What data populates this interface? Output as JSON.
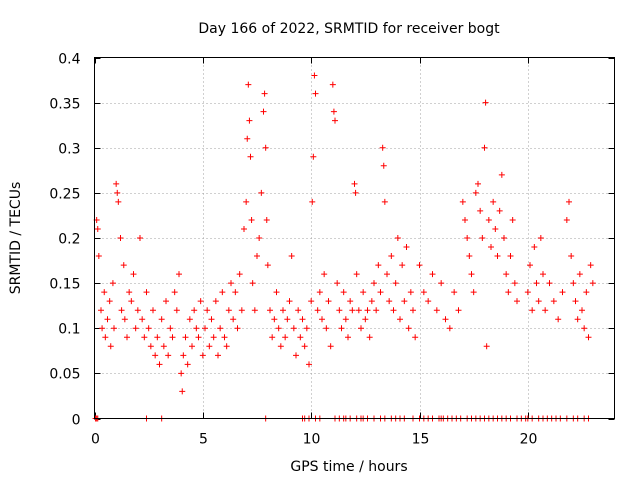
{
  "chart_data": {
    "type": "scatter",
    "title": "Day 166 of 2022, SRMTID for receiver bogt",
    "xlabel": "GPS time / hours",
    "ylabel": "SRMTID / TECUs",
    "xlim": [
      0,
      24
    ],
    "ylim": [
      0,
      0.4
    ],
    "x_ticks": [
      0,
      5,
      10,
      15,
      20
    ],
    "x_tick_labels": [
      "0",
      "5",
      "10",
      "15",
      "20"
    ],
    "y_ticks": [
      0,
      0.05,
      0.1,
      0.15,
      0.2,
      0.25,
      0.3,
      0.35,
      0.4
    ],
    "y_tick_labels": [
      "0",
      "0.05",
      "0.1",
      "0.15",
      "0.2",
      "0.25",
      "0.3",
      "0.35",
      "0.4"
    ],
    "grid": true,
    "marker": "+",
    "color": "#ff0000",
    "series": [
      {
        "name": "SRMTID",
        "points": [
          [
            0.1,
            0.22
          ],
          [
            0.15,
            0.21
          ],
          [
            0.2,
            0.18
          ],
          [
            0.3,
            0.12
          ],
          [
            0.35,
            0.1
          ],
          [
            0.45,
            0.14
          ],
          [
            0.5,
            0.09
          ],
          [
            0.6,
            0.11
          ],
          [
            0.7,
            0.13
          ],
          [
            0.75,
            0.08
          ],
          [
            0.85,
            0.15
          ],
          [
            0.9,
            0.1
          ],
          [
            1.0,
            0.26
          ],
          [
            1.05,
            0.25
          ],
          [
            1.1,
            0.24
          ],
          [
            1.2,
            0.2
          ],
          [
            1.25,
            0.12
          ],
          [
            1.35,
            0.17
          ],
          [
            1.4,
            0.11
          ],
          [
            1.5,
            0.09
          ],
          [
            1.6,
            0.14
          ],
          [
            1.7,
            0.13
          ],
          [
            1.8,
            0.16
          ],
          [
            1.9,
            0.1
          ],
          [
            2.0,
            0.12
          ],
          [
            2.1,
            0.2
          ],
          [
            2.2,
            0.11
          ],
          [
            2.3,
            0.09
          ],
          [
            2.4,
            0.14
          ],
          [
            2.5,
            0.1
          ],
          [
            2.6,
            0.08
          ],
          [
            2.7,
            0.12
          ],
          [
            2.8,
            0.07
          ],
          [
            2.9,
            0.09
          ],
          [
            3.0,
            0.06
          ],
          [
            3.1,
            0.11
          ],
          [
            3.2,
            0.08
          ],
          [
            3.3,
            0.13
          ],
          [
            3.4,
            0.07
          ],
          [
            3.5,
            0.1
          ],
          [
            3.6,
            0.09
          ],
          [
            3.7,
            0.14
          ],
          [
            3.8,
            0.12
          ],
          [
            3.9,
            0.16
          ],
          [
            4.0,
            0.05
          ],
          [
            4.05,
            0.03
          ],
          [
            4.1,
            0.07
          ],
          [
            4.2,
            0.09
          ],
          [
            4.3,
            0.06
          ],
          [
            4.4,
            0.11
          ],
          [
            4.5,
            0.08
          ],
          [
            4.6,
            0.12
          ],
          [
            4.7,
            0.1
          ],
          [
            4.8,
            0.09
          ],
          [
            4.9,
            0.13
          ],
          [
            5.0,
            0.07
          ],
          [
            5.1,
            0.1
          ],
          [
            5.2,
            0.12
          ],
          [
            5.3,
            0.08
          ],
          [
            5.4,
            0.11
          ],
          [
            5.5,
            0.09
          ],
          [
            5.6,
            0.13
          ],
          [
            5.7,
            0.07
          ],
          [
            5.8,
            0.1
          ],
          [
            5.9,
            0.14
          ],
          [
            6.0,
            0.09
          ],
          [
            6.1,
            0.08
          ],
          [
            6.2,
            0.12
          ],
          [
            6.3,
            0.15
          ],
          [
            6.4,
            0.11
          ],
          [
            6.5,
            0.14
          ],
          [
            6.6,
            0.1
          ],
          [
            6.7,
            0.16
          ],
          [
            6.8,
            0.12
          ],
          [
            6.9,
            0.21
          ],
          [
            7.0,
            0.24
          ],
          [
            7.05,
            0.31
          ],
          [
            7.1,
            0.37
          ],
          [
            7.15,
            0.33
          ],
          [
            7.2,
            0.29
          ],
          [
            7.25,
            0.22
          ],
          [
            7.3,
            0.15
          ],
          [
            7.4,
            0.12
          ],
          [
            7.5,
            0.18
          ],
          [
            7.6,
            0.2
          ],
          [
            7.7,
            0.25
          ],
          [
            7.8,
            0.34
          ],
          [
            7.85,
            0.36
          ],
          [
            7.9,
            0.3
          ],
          [
            7.95,
            0.22
          ],
          [
            8.0,
            0.17
          ],
          [
            8.1,
            0.12
          ],
          [
            8.2,
            0.09
          ],
          [
            8.3,
            0.11
          ],
          [
            8.4,
            0.14
          ],
          [
            8.5,
            0.1
          ],
          [
            8.6,
            0.08
          ],
          [
            8.7,
            0.12
          ],
          [
            8.8,
            0.09
          ],
          [
            8.9,
            0.11
          ],
          [
            9.0,
            0.13
          ],
          [
            9.1,
            0.18
          ],
          [
            9.2,
            0.1
          ],
          [
            9.3,
            0.07
          ],
          [
            9.4,
            0.12
          ],
          [
            9.5,
            0.09
          ],
          [
            9.6,
            0.11
          ],
          [
            9.7,
            0.08
          ],
          [
            9.8,
            0.1
          ],
          [
            9.9,
            0.06
          ],
          [
            10.0,
            0.13
          ],
          [
            10.05,
            0.24
          ],
          [
            10.1,
            0.29
          ],
          [
            10.15,
            0.38
          ],
          [
            10.2,
            0.36
          ],
          [
            10.3,
            0.12
          ],
          [
            10.4,
            0.14
          ],
          [
            10.5,
            0.11
          ],
          [
            10.6,
            0.16
          ],
          [
            10.7,
            0.1
          ],
          [
            10.8,
            0.13
          ],
          [
            10.9,
            0.08
          ],
          [
            11.0,
            0.37
          ],
          [
            11.05,
            0.34
          ],
          [
            11.1,
            0.33
          ],
          [
            11.2,
            0.15
          ],
          [
            11.3,
            0.12
          ],
          [
            11.4,
            0.1
          ],
          [
            11.5,
            0.14
          ],
          [
            11.6,
            0.11
          ],
          [
            11.7,
            0.09
          ],
          [
            11.8,
            0.13
          ],
          [
            11.9,
            0.12
          ],
          [
            12.0,
            0.26
          ],
          [
            12.05,
            0.25
          ],
          [
            12.1,
            0.16
          ],
          [
            12.2,
            0.12
          ],
          [
            12.3,
            0.1
          ],
          [
            12.4,
            0.14
          ],
          [
            12.5,
            0.11
          ],
          [
            12.6,
            0.12
          ],
          [
            12.7,
            0.09
          ],
          [
            12.8,
            0.13
          ],
          [
            12.9,
            0.15
          ],
          [
            13.0,
            0.12
          ],
          [
            13.1,
            0.17
          ],
          [
            13.2,
            0.14
          ],
          [
            13.3,
            0.3
          ],
          [
            13.35,
            0.28
          ],
          [
            13.4,
            0.24
          ],
          [
            13.5,
            0.16
          ],
          [
            13.6,
            0.13
          ],
          [
            13.7,
            0.18
          ],
          [
            13.8,
            0.12
          ],
          [
            13.9,
            0.15
          ],
          [
            14.0,
            0.2
          ],
          [
            14.1,
            0.11
          ],
          [
            14.2,
            0.17
          ],
          [
            14.3,
            0.13
          ],
          [
            14.4,
            0.19
          ],
          [
            14.5,
            0.1
          ],
          [
            14.6,
            0.14
          ],
          [
            14.7,
            0.12
          ],
          [
            14.8,
            0.09
          ],
          [
            15.0,
            0.17
          ],
          [
            15.2,
            0.14
          ],
          [
            15.4,
            0.13
          ],
          [
            15.6,
            0.16
          ],
          [
            15.8,
            0.12
          ],
          [
            16.0,
            0.15
          ],
          [
            16.2,
            0.11
          ],
          [
            16.4,
            0.1
          ],
          [
            16.6,
            0.14
          ],
          [
            16.8,
            0.12
          ],
          [
            17.0,
            0.24
          ],
          [
            17.1,
            0.22
          ],
          [
            17.2,
            0.2
          ],
          [
            17.3,
            0.18
          ],
          [
            17.4,
            0.16
          ],
          [
            17.5,
            0.14
          ],
          [
            17.6,
            0.25
          ],
          [
            17.7,
            0.26
          ],
          [
            17.8,
            0.23
          ],
          [
            17.9,
            0.2
          ],
          [
            18.0,
            0.3
          ],
          [
            18.05,
            0.35
          ],
          [
            18.1,
            0.08
          ],
          [
            18.2,
            0.22
          ],
          [
            18.3,
            0.19
          ],
          [
            18.4,
            0.24
          ],
          [
            18.5,
            0.21
          ],
          [
            18.6,
            0.18
          ],
          [
            18.7,
            0.23
          ],
          [
            18.8,
            0.27
          ],
          [
            18.9,
            0.2
          ],
          [
            19.0,
            0.16
          ],
          [
            19.1,
            0.14
          ],
          [
            19.2,
            0.18
          ],
          [
            19.3,
            0.22
          ],
          [
            19.4,
            0.15
          ],
          [
            19.5,
            0.13
          ],
          [
            20.0,
            0.14
          ],
          [
            20.1,
            0.17
          ],
          [
            20.2,
            0.12
          ],
          [
            20.3,
            0.19
          ],
          [
            20.4,
            0.15
          ],
          [
            20.5,
            0.13
          ],
          [
            20.6,
            0.2
          ],
          [
            20.7,
            0.16
          ],
          [
            20.8,
            0.12
          ],
          [
            21.0,
            0.15
          ],
          [
            21.2,
            0.13
          ],
          [
            21.4,
            0.11
          ],
          [
            21.6,
            0.14
          ],
          [
            21.8,
            0.22
          ],
          [
            21.9,
            0.24
          ],
          [
            22.0,
            0.18
          ],
          [
            22.1,
            0.15
          ],
          [
            22.2,
            0.13
          ],
          [
            22.3,
            0.11
          ],
          [
            22.4,
            0.16
          ],
          [
            22.5,
            0.12
          ],
          [
            22.6,
            0.1
          ],
          [
            22.7,
            0.14
          ],
          [
            22.8,
            0.09
          ],
          [
            22.9,
            0.17
          ],
          [
            23.0,
            0.15
          ]
        ],
        "zero_x": [
          0.05,
          0.1,
          0.15,
          2.4,
          3.1,
          7.9,
          9.6,
          9.7,
          9.9,
          10.2,
          10.4,
          11.1,
          11.3,
          11.5,
          11.6,
          11.8,
          12.1,
          12.3,
          12.4,
          12.6,
          12.9,
          13.2,
          13.4,
          13.7,
          13.9,
          14.1,
          14.3,
          14.7,
          15.0,
          15.2,
          15.4,
          15.6,
          15.9,
          16.0,
          16.1,
          16.3,
          16.5,
          16.7,
          16.9,
          17.2,
          17.4,
          17.6,
          17.8,
          18.0,
          18.2,
          18.4,
          18.6,
          18.8,
          19.0,
          19.2,
          19.5,
          19.7,
          19.9,
          20.0,
          20.2,
          20.5,
          20.7,
          20.9,
          21.1,
          21.3,
          21.5,
          21.8,
          22.1,
          22.3,
          22.6,
          22.8
        ]
      }
    ]
  }
}
